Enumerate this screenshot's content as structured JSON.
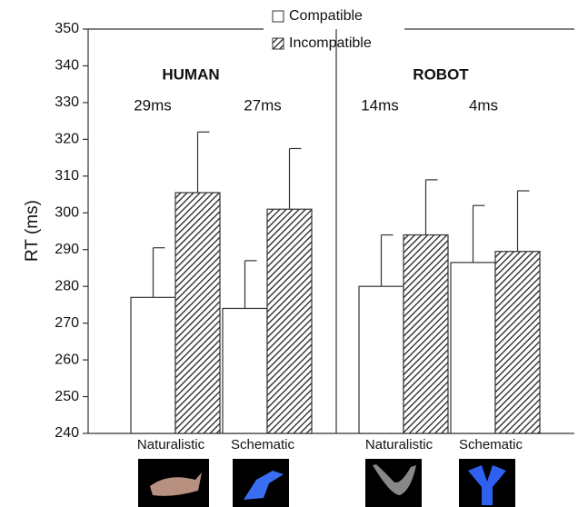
{
  "chart_data": {
    "type": "bar",
    "y_label": "RT (ms)",
    "categories": [
      "Naturalistic",
      "Schematic",
      "Naturalistic",
      "Schematic"
    ],
    "groups": [
      "HUMAN",
      "ROBOT"
    ],
    "annotations": [
      "29ms",
      "27ms",
      "14ms",
      "4ms"
    ],
    "series": [
      {
        "name": "Compatible",
        "color": "#ffffff",
        "hatch": false,
        "values": [
          277,
          274,
          280,
          286.5
        ],
        "errors": [
          13.5,
          13,
          14,
          15.5
        ]
      },
      {
        "name": "Incompatible",
        "color": "#ffffff",
        "hatch": true,
        "values": [
          305.5,
          301,
          294,
          289.5
        ],
        "errors": [
          16.5,
          16.5,
          15,
          16.5
        ]
      }
    ],
    "ylim": [
      240,
      350
    ],
    "yticks": [
      240,
      250,
      260,
      270,
      280,
      290,
      300,
      310,
      320,
      330,
      340,
      350
    ]
  }
}
